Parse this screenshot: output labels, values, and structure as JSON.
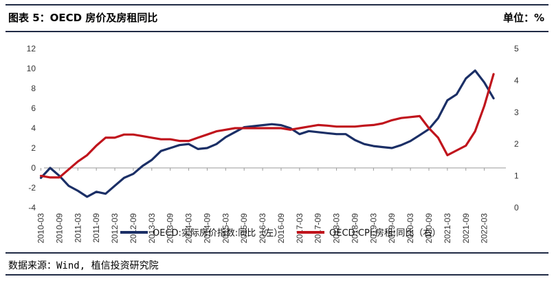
{
  "header": {
    "title": "图表 5：OECD 房价及房租同比",
    "unit": "单位：%"
  },
  "footer": {
    "source": "数据来源：Wind, 植信投资研究院"
  },
  "chart_data": {
    "type": "line",
    "x_tick_labels": [
      "2010-03",
      "2010-09",
      "2011-03",
      "2011-09",
      "2012-03",
      "2012-09",
      "2013-03",
      "2013-09",
      "2014-03",
      "2014-09",
      "2015-03",
      "2015-09",
      "2016-03",
      "2016-09",
      "2017-03",
      "2017-09",
      "2018-03",
      "2018-09",
      "2019-03",
      "2019-09",
      "2020-03",
      "2020-09",
      "2021-03",
      "2021-09",
      "2022-03"
    ],
    "y_left": {
      "ticks": [
        12,
        10,
        8,
        6,
        4,
        2,
        0,
        -2,
        -4
      ],
      "range": [
        -4,
        12
      ]
    },
    "y_right": {
      "ticks": [
        5,
        4,
        3,
        2,
        1,
        0
      ],
      "range": [
        0,
        5
      ]
    },
    "series": [
      {
        "name": "OECD:实际房价指数:同比（左）",
        "color": "#1b2f66",
        "axis": "left",
        "x": [
          "2010-03",
          "2010-06",
          "2010-09",
          "2010-12",
          "2011-03",
          "2011-06",
          "2011-09",
          "2011-12",
          "2012-03",
          "2012-06",
          "2012-09",
          "2012-12",
          "2013-03",
          "2013-06",
          "2013-09",
          "2013-12",
          "2014-03",
          "2014-06",
          "2014-09",
          "2014-12",
          "2015-03",
          "2015-06",
          "2015-09",
          "2015-12",
          "2016-03",
          "2016-06",
          "2016-09",
          "2016-12",
          "2017-03",
          "2017-06",
          "2017-09",
          "2017-12",
          "2018-03",
          "2018-06",
          "2018-09",
          "2018-12",
          "2019-03",
          "2019-06",
          "2019-09",
          "2019-12",
          "2020-03",
          "2020-06",
          "2020-09",
          "2020-12",
          "2021-03",
          "2021-06",
          "2021-09",
          "2021-12",
          "2022-03",
          "2022-06"
        ],
        "values": [
          -1.0,
          0.0,
          -0.8,
          -1.8,
          -2.3,
          -2.9,
          -2.4,
          -2.6,
          -1.8,
          -1.0,
          -0.6,
          0.2,
          0.8,
          1.7,
          2.0,
          2.3,
          2.4,
          1.9,
          2.0,
          2.4,
          3.1,
          3.6,
          4.1,
          4.2,
          4.3,
          4.4,
          4.3,
          4.0,
          3.4,
          3.7,
          3.6,
          3.5,
          3.4,
          3.4,
          2.8,
          2.4,
          2.2,
          2.1,
          2.0,
          2.3,
          2.7,
          3.3,
          3.9,
          5.0,
          6.8,
          7.4,
          9.0,
          9.8,
          8.6,
          7.0
        ]
      },
      {
        "name": "OECD:CPI:房租:同比（右）",
        "color": "#c0141c",
        "axis": "right",
        "x": [
          "2010-03",
          "2010-06",
          "2010-09",
          "2010-12",
          "2011-03",
          "2011-06",
          "2011-09",
          "2011-12",
          "2012-03",
          "2012-06",
          "2012-09",
          "2012-12",
          "2013-03",
          "2013-06",
          "2013-09",
          "2013-12",
          "2014-03",
          "2014-06",
          "2014-09",
          "2014-12",
          "2015-03",
          "2015-06",
          "2015-09",
          "2015-12",
          "2016-03",
          "2016-06",
          "2016-09",
          "2016-12",
          "2017-03",
          "2017-06",
          "2017-09",
          "2017-12",
          "2018-03",
          "2018-06",
          "2018-09",
          "2018-12",
          "2019-03",
          "2019-06",
          "2019-09",
          "2019-12",
          "2020-03",
          "2020-06",
          "2020-09",
          "2020-12",
          "2021-03",
          "2021-06",
          "2021-09",
          "2021-12",
          "2022-03",
          "2022-06"
        ],
        "values": [
          1.0,
          0.95,
          0.95,
          1.2,
          1.45,
          1.65,
          1.95,
          2.2,
          2.2,
          2.3,
          2.3,
          2.25,
          2.2,
          2.15,
          2.15,
          2.1,
          2.1,
          2.2,
          2.3,
          2.4,
          2.45,
          2.5,
          2.5,
          2.5,
          2.5,
          2.5,
          2.5,
          2.45,
          2.5,
          2.55,
          2.6,
          2.58,
          2.55,
          2.55,
          2.55,
          2.58,
          2.6,
          2.65,
          2.75,
          2.82,
          2.85,
          2.88,
          2.5,
          2.2,
          1.65,
          1.8,
          1.95,
          2.4,
          3.2,
          4.2
        ]
      }
    ]
  }
}
